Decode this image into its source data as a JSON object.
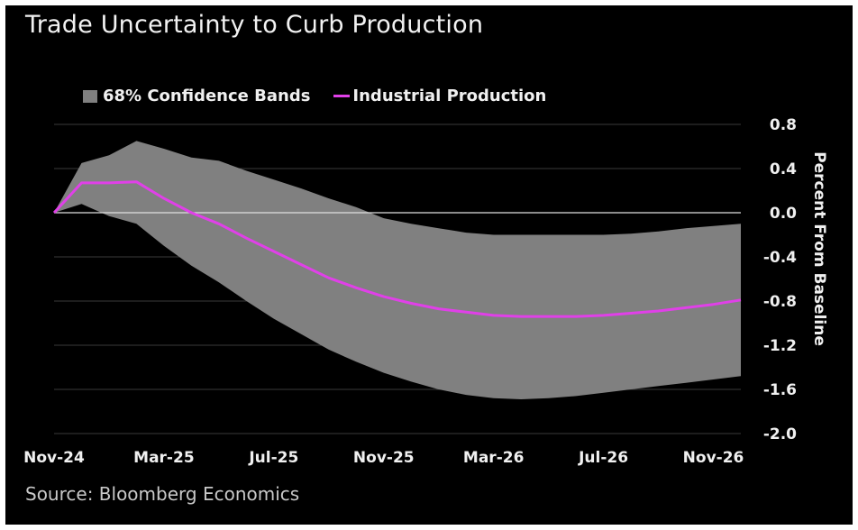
{
  "title": "Trade Uncertainty to Curb Production",
  "source": "Source: Bloomberg Economics",
  "colors": {
    "background": "#000000",
    "band": "#808080",
    "line": "#e040e8",
    "text": "#f0f0f0",
    "grid": "#3a3a3a"
  },
  "chart_data": {
    "type": "area",
    "ylabel": "Percent From Baseline",
    "ylim": [
      -2.0,
      0.8
    ],
    "yticks": [
      0.8,
      0.4,
      0.0,
      -0.4,
      -0.8,
      -1.2,
      -1.6,
      -2.0
    ],
    "ytick_labels": [
      "0.8",
      "0.4",
      "0.0",
      "-0.4",
      "-0.8",
      "-1.2",
      "-1.6",
      "-2.0"
    ],
    "xtick_labels": [
      "Nov-24",
      "Mar-25",
      "Jul-25",
      "Nov-25",
      "Mar-26",
      "Jul-26",
      "Nov-26"
    ],
    "x": [
      "Nov-24",
      "Dec-24",
      "Jan-25",
      "Feb-25",
      "Mar-25",
      "Apr-25",
      "May-25",
      "Jun-25",
      "Jul-25",
      "Aug-25",
      "Sep-25",
      "Oct-25",
      "Nov-25",
      "Dec-25",
      "Jan-26",
      "Feb-26",
      "Mar-26",
      "Apr-26",
      "May-26",
      "Jun-26",
      "Jul-26",
      "Aug-26",
      "Sep-26",
      "Oct-26",
      "Nov-26",
      "Dec-26"
    ],
    "grid": true,
    "legend_position": "top-left",
    "series": [
      {
        "name": "68% Confidence Bands",
        "kind": "band",
        "upper": [
          0.0,
          0.45,
          0.52,
          0.65,
          0.58,
          0.5,
          0.47,
          0.38,
          0.3,
          0.22,
          0.13,
          0.05,
          -0.05,
          -0.1,
          -0.14,
          -0.18,
          -0.2,
          -0.2,
          -0.2,
          -0.2,
          -0.2,
          -0.19,
          -0.17,
          -0.14,
          -0.12,
          -0.1
        ],
        "lower": [
          0.0,
          0.08,
          -0.03,
          -0.1,
          -0.3,
          -0.48,
          -0.63,
          -0.8,
          -0.96,
          -1.1,
          -1.24,
          -1.35,
          -1.45,
          -1.53,
          -1.6,
          -1.65,
          -1.68,
          -1.69,
          -1.68,
          -1.66,
          -1.63,
          -1.6,
          -1.57,
          -1.54,
          -1.51,
          -1.48
        ]
      },
      {
        "name": "Industrial Production",
        "kind": "line",
        "values": [
          0.0,
          0.27,
          0.27,
          0.28,
          0.13,
          0.0,
          -0.1,
          -0.23,
          -0.35,
          -0.47,
          -0.59,
          -0.68,
          -0.76,
          -0.82,
          -0.87,
          -0.9,
          -0.93,
          -0.94,
          -0.94,
          -0.94,
          -0.93,
          -0.91,
          -0.89,
          -0.86,
          -0.83,
          -0.79
        ]
      }
    ]
  }
}
